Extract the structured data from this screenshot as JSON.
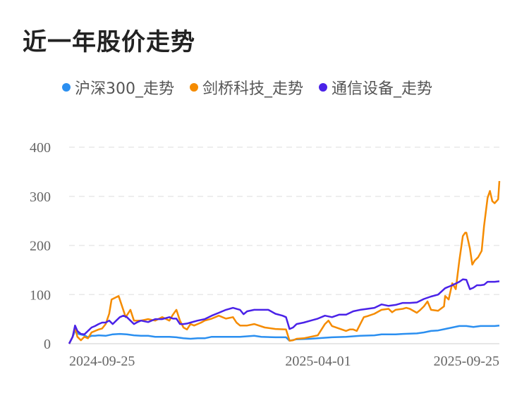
{
  "chart_data": {
    "type": "line",
    "title": "近一年股价走势",
    "xlabel": "",
    "ylabel": "",
    "x_unit": "days since 2024-09-25",
    "xlim": [
      0,
      365
    ],
    "ylim": [
      0,
      400
    ],
    "yticks": [
      "0",
      "100",
      "200",
      "300",
      "400"
    ],
    "ytick_values": [
      0,
      100,
      200,
      300,
      400
    ],
    "xticks": [
      "2024-09-25",
      "2025-04-01",
      "2025-09-25"
    ],
    "grid": true,
    "legend_position": "top-left",
    "series": [
      {
        "name": "沪深300_走势",
        "color": "#2b8ff0",
        "points": [
          [
            0,
            0
          ],
          [
            3,
            14
          ],
          [
            5,
            26
          ],
          [
            8,
            20
          ],
          [
            13,
            17
          ],
          [
            16,
            13
          ],
          [
            19,
            16
          ],
          [
            22,
            16
          ],
          [
            25,
            17
          ],
          [
            31,
            16
          ],
          [
            37,
            19
          ],
          [
            43,
            20
          ],
          [
            49,
            19
          ],
          [
            55,
            17
          ],
          [
            61,
            16
          ],
          [
            67,
            16
          ],
          [
            73,
            14
          ],
          [
            79,
            14
          ],
          [
            85,
            14
          ],
          [
            91,
            13
          ],
          [
            97,
            11
          ],
          [
            103,
            10
          ],
          [
            109,
            11
          ],
          [
            115,
            11
          ],
          [
            121,
            14
          ],
          [
            127,
            14
          ],
          [
            133,
            14
          ],
          [
            145,
            14
          ],
          [
            157,
            16
          ],
          [
            163,
            14
          ],
          [
            175,
            13
          ],
          [
            184,
            13
          ],
          [
            187,
            6
          ],
          [
            193,
            9
          ],
          [
            205,
            10
          ],
          [
            211,
            11
          ],
          [
            223,
            13
          ],
          [
            235,
            14
          ],
          [
            247,
            16
          ],
          [
            259,
            17
          ],
          [
            265,
            19
          ],
          [
            277,
            19
          ],
          [
            283,
            20
          ],
          [
            295,
            21
          ],
          [
            301,
            23
          ],
          [
            307,
            26
          ],
          [
            313,
            27
          ],
          [
            319,
            30
          ],
          [
            325,
            33
          ],
          [
            331,
            36
          ],
          [
            337,
            36
          ],
          [
            343,
            34
          ],
          [
            349,
            36
          ],
          [
            361,
            36
          ],
          [
            365,
            37
          ]
        ]
      },
      {
        "name": "剑桥科技_走势",
        "color": "#f58b00",
        "points": [
          [
            0,
            0
          ],
          [
            3,
            14
          ],
          [
            5,
            33
          ],
          [
            7,
            14
          ],
          [
            10,
            7
          ],
          [
            13,
            14
          ],
          [
            16,
            11
          ],
          [
            19,
            23
          ],
          [
            22,
            26
          ],
          [
            25,
            29
          ],
          [
            28,
            31
          ],
          [
            31,
            40
          ],
          [
            34,
            61
          ],
          [
            36,
            90
          ],
          [
            42,
            97
          ],
          [
            48,
            54
          ],
          [
            52,
            69
          ],
          [
            55,
            47
          ],
          [
            61,
            47
          ],
          [
            67,
            50
          ],
          [
            73,
            47
          ],
          [
            79,
            54
          ],
          [
            85,
            47
          ],
          [
            88,
            59
          ],
          [
            91,
            69
          ],
          [
            94,
            47
          ],
          [
            97,
            33
          ],
          [
            100,
            29
          ],
          [
            103,
            40
          ],
          [
            106,
            37
          ],
          [
            109,
            40
          ],
          [
            112,
            43
          ],
          [
            115,
            47
          ],
          [
            121,
            51
          ],
          [
            124,
            54
          ],
          [
            127,
            57
          ],
          [
            133,
            51
          ],
          [
            139,
            54
          ],
          [
            142,
            43
          ],
          [
            145,
            37
          ],
          [
            151,
            37
          ],
          [
            157,
            40
          ],
          [
            166,
            33
          ],
          [
            175,
            30
          ],
          [
            184,
            29
          ],
          [
            187,
            6
          ],
          [
            190,
            7
          ],
          [
            193,
            10
          ],
          [
            199,
            11
          ],
          [
            205,
            14
          ],
          [
            211,
            17
          ],
          [
            217,
            40
          ],
          [
            220,
            47
          ],
          [
            223,
            36
          ],
          [
            229,
            31
          ],
          [
            235,
            26
          ],
          [
            238,
            29
          ],
          [
            241,
            29
          ],
          [
            244,
            26
          ],
          [
            247,
            40
          ],
          [
            250,
            54
          ],
          [
            253,
            56
          ],
          [
            259,
            61
          ],
          [
            265,
            69
          ],
          [
            271,
            71
          ],
          [
            274,
            64
          ],
          [
            277,
            69
          ],
          [
            283,
            71
          ],
          [
            286,
            73
          ],
          [
            289,
            71
          ],
          [
            295,
            63
          ],
          [
            298,
            69
          ],
          [
            301,
            76
          ],
          [
            304,
            86
          ],
          [
            307,
            69
          ],
          [
            313,
            67
          ],
          [
            318,
            76
          ],
          [
            319,
            97
          ],
          [
            322,
            90
          ],
          [
            325,
            123
          ],
          [
            328,
            111
          ],
          [
            331,
            169
          ],
          [
            334,
            219
          ],
          [
            336,
            226
          ],
          [
            337,
            226
          ],
          [
            340,
            194
          ],
          [
            342,
            161
          ],
          [
            344,
            169
          ],
          [
            347,
            176
          ],
          [
            350,
            189
          ],
          [
            352,
            240
          ],
          [
            355,
            297
          ],
          [
            357,
            311
          ],
          [
            359,
            290
          ],
          [
            361,
            286
          ],
          [
            364,
            294
          ],
          [
            365,
            331
          ]
        ]
      },
      {
        "name": "通信设备_走势",
        "color": "#4a22e8",
        "points": [
          [
            0,
            0
          ],
          [
            3,
            14
          ],
          [
            5,
            37
          ],
          [
            7,
            26
          ],
          [
            10,
            20
          ],
          [
            13,
            19
          ],
          [
            16,
            26
          ],
          [
            19,
            33
          ],
          [
            22,
            36
          ],
          [
            25,
            40
          ],
          [
            28,
            43
          ],
          [
            31,
            43
          ],
          [
            34,
            47
          ],
          [
            37,
            40
          ],
          [
            40,
            47
          ],
          [
            43,
            54
          ],
          [
            46,
            57
          ],
          [
            49,
            54
          ],
          [
            52,
            47
          ],
          [
            55,
            40
          ],
          [
            58,
            44
          ],
          [
            61,
            47
          ],
          [
            67,
            44
          ],
          [
            73,
            50
          ],
          [
            79,
            50
          ],
          [
            85,
            54
          ],
          [
            88,
            51
          ],
          [
            91,
            51
          ],
          [
            94,
            40
          ],
          [
            97,
            40
          ],
          [
            100,
            41
          ],
          [
            103,
            43
          ],
          [
            109,
            47
          ],
          [
            115,
            50
          ],
          [
            121,
            57
          ],
          [
            127,
            63
          ],
          [
            133,
            69
          ],
          [
            139,
            73
          ],
          [
            145,
            69
          ],
          [
            148,
            60
          ],
          [
            151,
            66
          ],
          [
            157,
            69
          ],
          [
            163,
            69
          ],
          [
            169,
            69
          ],
          [
            175,
            61
          ],
          [
            181,
            57
          ],
          [
            184,
            54
          ],
          [
            187,
            30
          ],
          [
            190,
            33
          ],
          [
            193,
            40
          ],
          [
            199,
            43
          ],
          [
            205,
            47
          ],
          [
            211,
            51
          ],
          [
            217,
            57
          ],
          [
            223,
            54
          ],
          [
            229,
            59
          ],
          [
            235,
            59
          ],
          [
            241,
            66
          ],
          [
            247,
            69
          ],
          [
            253,
            71
          ],
          [
            259,
            73
          ],
          [
            265,
            80
          ],
          [
            271,
            77
          ],
          [
            277,
            79
          ],
          [
            283,
            83
          ],
          [
            289,
            83
          ],
          [
            295,
            84
          ],
          [
            301,
            91
          ],
          [
            307,
            96
          ],
          [
            313,
            100
          ],
          [
            319,
            113
          ],
          [
            325,
            119
          ],
          [
            331,
            126
          ],
          [
            334,
            131
          ],
          [
            337,
            130
          ],
          [
            340,
            111
          ],
          [
            343,
            114
          ],
          [
            346,
            119
          ],
          [
            349,
            119
          ],
          [
            352,
            120
          ],
          [
            355,
            126
          ],
          [
            361,
            126
          ],
          [
            365,
            127
          ]
        ]
      }
    ]
  }
}
